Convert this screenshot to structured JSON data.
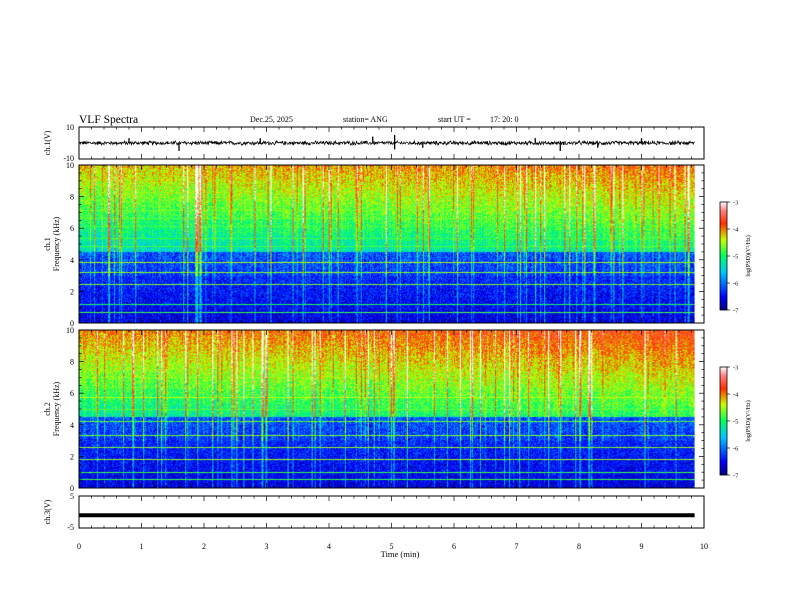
{
  "header": {
    "title": "VLF Spectra",
    "date": "Dec.25, 2025",
    "station": "station= ANG",
    "start": "start UT =",
    "start_time": "17: 20: 0"
  },
  "chart_data": [
    {
      "type": "line",
      "name": "ch1-waveform",
      "ylabel": "ch.1(V)",
      "ylim": [
        -10,
        10
      ],
      "yticks": [
        "10",
        "-10"
      ],
      "baseline": 0,
      "noise_amplitude": 1.5,
      "spikes": [
        {
          "t": 0.8,
          "v": 3
        },
        {
          "t": 1.6,
          "v": -5
        },
        {
          "t": 2.9,
          "v": 3
        },
        {
          "t": 4.7,
          "v": 4
        },
        {
          "t": 5.05,
          "v": 5
        },
        {
          "t": 5.05,
          "v": -4
        },
        {
          "t": 5.5,
          "v": -3
        },
        {
          "t": 7.3,
          "v": 3
        },
        {
          "t": 7.7,
          "v": -5
        },
        {
          "t": 8.3,
          "v": -3
        },
        {
          "t": 9.0,
          "v": 3
        }
      ]
    },
    {
      "type": "heatmap",
      "name": "ch1-spectrogram",
      "ylabel_lines": [
        "ch.1",
        "Frequency (kHz)"
      ],
      "ylim": [
        0,
        10
      ],
      "yticks": [
        "0",
        "2",
        "4",
        "6",
        "8",
        "10"
      ],
      "xlim": [
        0,
        9.85
      ],
      "colorbar": {
        "label": "log(PSD)(V²/Hz)",
        "min": -7,
        "max": -3,
        "ticks": [
          "-3",
          "-4",
          "-5",
          "-6",
          "-7"
        ]
      }
    },
    {
      "type": "heatmap",
      "name": "ch2-spectrogram",
      "ylabel_lines": [
        "ch.2",
        "Frequency (kHz)"
      ],
      "ylim": [
        0,
        10
      ],
      "yticks": [
        "0",
        "2",
        "4",
        "6",
        "8",
        "10"
      ],
      "xlim": [
        0,
        9.85
      ],
      "colorbar": {
        "label": "log(PSD)(V²/Hz)",
        "min": -7,
        "max": -3,
        "ticks": [
          "-3",
          "-4",
          "-5",
          "-6",
          "-7"
        ]
      }
    },
    {
      "type": "line",
      "name": "ch3-waveform",
      "ylabel": "ch.3(V)",
      "ylim": [
        -5,
        5
      ],
      "yticks": [
        "5",
        "0",
        "-5"
      ],
      "baseline": -1
    }
  ],
  "xaxis": {
    "label": "Time (min)",
    "range": [
      0,
      10
    ],
    "ticks": [
      "0",
      "1",
      "2",
      "3",
      "4",
      "5",
      "6",
      "7",
      "8",
      "9",
      "10"
    ]
  }
}
